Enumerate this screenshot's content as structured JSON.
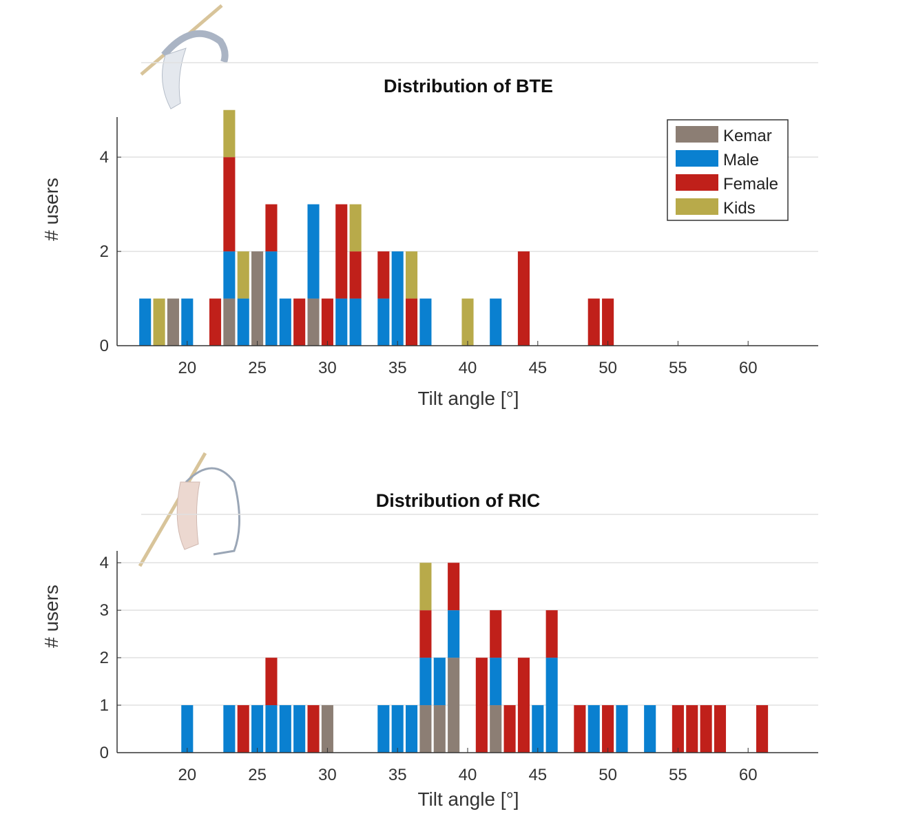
{
  "legend": [
    "Kemar",
    "Male",
    "Female",
    "Kids"
  ],
  "colors": {
    "Kemar": "#8c7e74",
    "Male": "#0a80d0",
    "Female": "#c0201a",
    "Kids": "#b8aa4a"
  },
  "chart_data": [
    {
      "type": "bar",
      "stacked": true,
      "title": "Distribution of BTE",
      "xlabel": "Tilt angle [°]",
      "ylabel": "# users",
      "xlim": [
        15,
        65
      ],
      "ylim": [
        0,
        4.85
      ],
      "xticks": [
        20,
        25,
        30,
        35,
        40,
        45,
        50,
        55,
        60
      ],
      "yticks": [
        0,
        2,
        4
      ],
      "grid": "horizontal",
      "legend_position": "top-right",
      "x": [
        17,
        18,
        19,
        20,
        22,
        23,
        24,
        25,
        26,
        27,
        28,
        29,
        30,
        31,
        32,
        34,
        35,
        36,
        37,
        40,
        42,
        44,
        49,
        50
      ],
      "series": [
        {
          "name": "Kemar",
          "values": [
            0,
            0,
            1,
            0,
            0,
            1,
            0,
            2,
            0,
            0,
            0,
            1,
            0,
            0,
            0,
            0,
            0,
            0,
            0,
            0,
            0,
            0,
            0,
            0
          ]
        },
        {
          "name": "Male",
          "values": [
            1,
            0,
            0,
            1,
            0,
            1,
            1,
            0,
            2,
            1,
            0,
            2,
            0,
            1,
            1,
            1,
            2,
            0,
            1,
            0,
            1,
            0,
            0,
            0
          ]
        },
        {
          "name": "Female",
          "values": [
            0,
            0,
            0,
            0,
            1,
            2,
            0,
            0,
            1,
            0,
            1,
            0,
            1,
            2,
            1,
            1,
            0,
            1,
            0,
            0,
            0,
            2,
            1,
            1
          ]
        },
        {
          "name": "Kids",
          "values": [
            0,
            1,
            0,
            0,
            0,
            1,
            1,
            0,
            0,
            0,
            0,
            0,
            0,
            0,
            1,
            0,
            0,
            1,
            0,
            1,
            0,
            0,
            0,
            0
          ]
        }
      ]
    },
    {
      "type": "bar",
      "stacked": true,
      "title": "Distribution of RIC",
      "xlabel": "Tilt angle [°]",
      "ylabel": "# users",
      "xlim": [
        15,
        65
      ],
      "ylim": [
        0,
        4.25
      ],
      "xticks": [
        20,
        25,
        30,
        35,
        40,
        45,
        50,
        55,
        60
      ],
      "yticks": [
        0,
        1,
        2,
        3,
        4
      ],
      "grid": "horizontal",
      "x": [
        20,
        23,
        24,
        25,
        26,
        27,
        28,
        29,
        30,
        34,
        35,
        36,
        37,
        38,
        39,
        41,
        42,
        43,
        44,
        45,
        46,
        48,
        49,
        50,
        51,
        53,
        55,
        56,
        57,
        58,
        61
      ],
      "series": [
        {
          "name": "Kemar",
          "values": [
            0,
            0,
            0,
            0,
            0,
            0,
            0,
            0,
            1,
            0,
            0,
            0,
            1,
            1,
            2,
            0,
            1,
            0,
            0,
            0,
            0,
            0,
            0,
            0,
            0,
            0,
            0,
            0,
            0,
            0,
            0
          ]
        },
        {
          "name": "Male",
          "values": [
            1,
            1,
            0,
            1,
            1,
            1,
            1,
            0,
            0,
            1,
            1,
            1,
            1,
            1,
            1,
            0,
            1,
            0,
            0,
            1,
            2,
            0,
            1,
            0,
            1,
            1,
            0,
            0,
            0,
            0,
            0
          ]
        },
        {
          "name": "Female",
          "values": [
            0,
            0,
            1,
            0,
            1,
            0,
            0,
            1,
            0,
            0,
            0,
            0,
            1,
            0,
            1,
            2,
            1,
            1,
            2,
            0,
            1,
            1,
            0,
            1,
            0,
            0,
            1,
            1,
            1,
            1,
            1
          ]
        },
        {
          "name": "Kids",
          "values": [
            0,
            0,
            0,
            0,
            0,
            0,
            0,
            0,
            0,
            0,
            0,
            0,
            1,
            0,
            0,
            0,
            0,
            0,
            0,
            0,
            0,
            0,
            0,
            0,
            0,
            0,
            0,
            0,
            0,
            0,
            0
          ]
        }
      ]
    }
  ]
}
